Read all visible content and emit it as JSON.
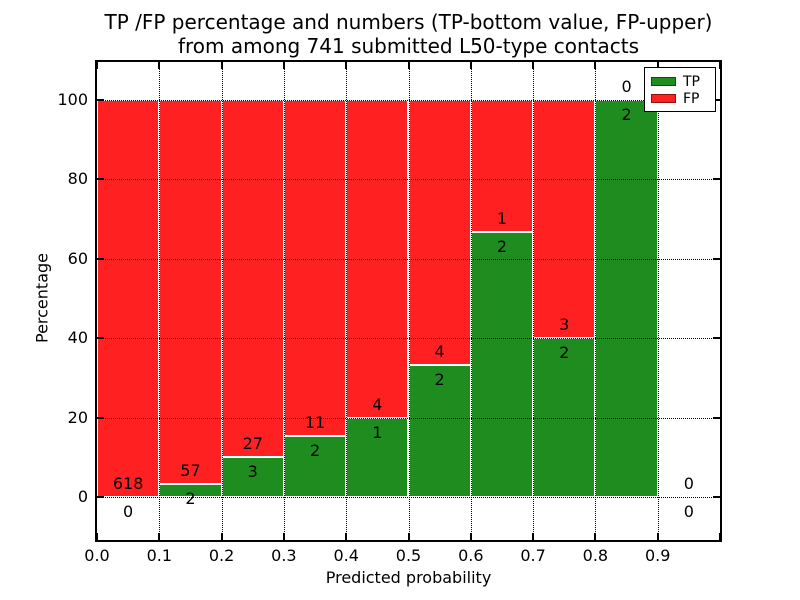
{
  "title": {
    "line1": "TP /FP percentage and numbers (TP-bottom value, FP-upper)",
    "line2": "from among 741 submitted L50-type contacts"
  },
  "axes": {
    "xlabel": "Predicted probability",
    "ylabel": "Percentage"
  },
  "legend": {
    "items": [
      {
        "label": "TP",
        "color": "#1e8c1e"
      },
      {
        "label": "FP",
        "color": "#ff2121"
      }
    ]
  },
  "colors": {
    "tp": "#1e8c1e",
    "fp": "#ff2121",
    "bar_edge": "#ffffff",
    "grid": "#000000",
    "frame": "#000000"
  },
  "chart_data": {
    "type": "bar",
    "stacked": true,
    "title": "TP /FP percentage and numbers (TP-bottom value, FP-upper) from among 741 submitted L50-type contacts",
    "xlabel": "Predicted probability",
    "ylabel": "Percentage",
    "xlim": [
      0.0,
      1.0
    ],
    "ylim": [
      -10.5,
      109.5
    ],
    "grid": true,
    "legend_position": "upper right",
    "total_contacts": 741,
    "x_ticks": [
      {
        "value": 0.0,
        "label": "0.0"
      },
      {
        "value": 0.1,
        "label": "0.1"
      },
      {
        "value": 0.2,
        "label": "0.2"
      },
      {
        "value": 0.3,
        "label": "0.3"
      },
      {
        "value": 0.4,
        "label": "0.4"
      },
      {
        "value": 0.5,
        "label": "0.5"
      },
      {
        "value": 0.6,
        "label": "0.6"
      },
      {
        "value": 0.7,
        "label": "0.7"
      },
      {
        "value": 0.8,
        "label": "0.8"
      },
      {
        "value": 0.9,
        "label": "0.9"
      },
      {
        "value": 1.0,
        "label": ""
      }
    ],
    "y_ticks": [
      0,
      20,
      40,
      60,
      80,
      100
    ],
    "series_names": [
      "TP",
      "FP"
    ],
    "bins": [
      {
        "range": [
          0.0,
          0.1
        ],
        "tp": 0,
        "fp": 618,
        "tp_pct": 0.0,
        "fp_pct": 100.0
      },
      {
        "range": [
          0.1,
          0.2
        ],
        "tp": 2,
        "fp": 57,
        "tp_pct": 3.39,
        "fp_pct": 96.61
      },
      {
        "range": [
          0.2,
          0.3
        ],
        "tp": 3,
        "fp": 27,
        "tp_pct": 10.0,
        "fp_pct": 90.0
      },
      {
        "range": [
          0.3,
          0.4
        ],
        "tp": 2,
        "fp": 11,
        "tp_pct": 15.38,
        "fp_pct": 84.62
      },
      {
        "range": [
          0.4,
          0.5
        ],
        "tp": 1,
        "fp": 4,
        "tp_pct": 20.0,
        "fp_pct": 80.0
      },
      {
        "range": [
          0.5,
          0.6
        ],
        "tp": 2,
        "fp": 4,
        "tp_pct": 33.33,
        "fp_pct": 66.67
      },
      {
        "range": [
          0.6,
          0.7
        ],
        "tp": 2,
        "fp": 1,
        "tp_pct": 66.67,
        "fp_pct": 33.33
      },
      {
        "range": [
          0.7,
          0.8
        ],
        "tp": 2,
        "fp": 3,
        "tp_pct": 40.0,
        "fp_pct": 60.0
      },
      {
        "range": [
          0.8,
          0.9
        ],
        "tp": 2,
        "fp": 0,
        "tp_pct": 100.0,
        "fp_pct": 0.0
      },
      {
        "range": [
          0.9,
          1.0
        ],
        "tp": 0,
        "fp": 0,
        "tp_pct": 0.0,
        "fp_pct": 0.0
      }
    ]
  }
}
